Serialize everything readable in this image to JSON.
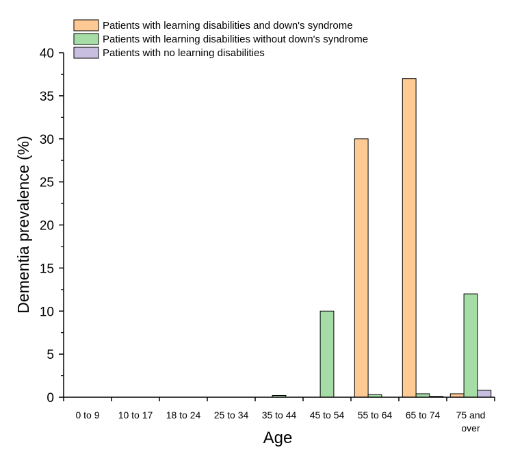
{
  "chart_data": {
    "type": "bar",
    "title": "",
    "xlabel": "Age",
    "ylabel": "Dementia prevalence (%)",
    "ylim": [
      0,
      40
    ],
    "yticks": [
      0,
      5,
      10,
      15,
      20,
      25,
      30,
      35,
      40
    ],
    "categories": [
      [
        "0 to 9"
      ],
      [
        "10 to 17"
      ],
      [
        "18 to 24"
      ],
      [
        "25 to 34"
      ],
      [
        "35 to 44"
      ],
      [
        "45 to 54"
      ],
      [
        "55 to 64"
      ],
      [
        "65 to 74"
      ],
      [
        "75 and",
        "over"
      ]
    ],
    "grid": false,
    "legend": "top-left",
    "series": [
      {
        "name": "Patients with learning disabilities and down's syndrome",
        "color": "#FFC994",
        "values": [
          0,
          0,
          0,
          0,
          0,
          0,
          30,
          37,
          0.4
        ]
      },
      {
        "name": "Patients with learning disabilities without down's syndrome",
        "color": "#A6DCA6",
        "values": [
          0,
          0,
          0,
          0,
          0.2,
          10,
          0.3,
          0.4,
          12
        ]
      },
      {
        "name": "Patients with no learning disabilities",
        "color": "#C8BEE0",
        "values": [
          0,
          0,
          0,
          0,
          0,
          0,
          0,
          0.1,
          0.8
        ]
      }
    ]
  }
}
